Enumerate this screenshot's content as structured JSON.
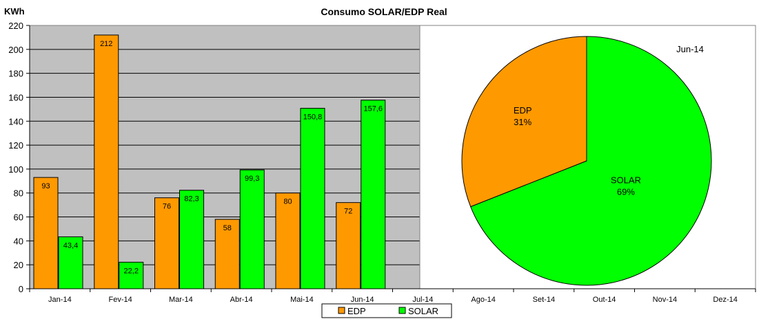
{
  "chart_data": {
    "type": "bar",
    "title": "Consumo SOLAR/EDP Real",
    "ylabel": "KWh",
    "ylim": [
      0,
      220
    ],
    "yticks": [
      0,
      20,
      40,
      60,
      80,
      100,
      120,
      140,
      160,
      180,
      200,
      220
    ],
    "categories": [
      "Jan-14",
      "Fev-14",
      "Mar-14",
      "Abr-14",
      "Mai-14",
      "Jun-14",
      "Jul-14",
      "Ago-14",
      "Set-14",
      "Out-14",
      "Nov-14",
      "Dez-14"
    ],
    "series": [
      {
        "name": "EDP",
        "color": "#ff9900",
        "values": [
          93,
          212,
          76,
          58,
          80,
          72,
          null,
          null,
          null,
          null,
          null,
          null
        ],
        "labels": [
          "93",
          "212",
          "76",
          "58",
          "80",
          "72",
          "",
          "",
          "",
          "",
          "",
          ""
        ]
      },
      {
        "name": "SOLAR",
        "color": "#00ff00",
        "values": [
          43.4,
          22.2,
          82.3,
          99.3,
          150.8,
          157.6,
          null,
          null,
          null,
          null,
          null,
          null
        ],
        "labels": [
          "43,4",
          "22,2",
          "82,3",
          "99,3",
          "150,8",
          "157,6",
          "",
          "",
          "",
          "",
          "",
          ""
        ]
      }
    ],
    "plot_background": "#c0c0c0",
    "grid": true,
    "legend": {
      "position": "bottom",
      "items": [
        "EDP",
        "SOLAR"
      ]
    },
    "inset_pie": {
      "type": "pie",
      "title": "Jun-14",
      "slices": [
        {
          "name": "EDP",
          "percent": 31,
          "pct_label": "31%",
          "color": "#ff9900"
        },
        {
          "name": "SOLAR",
          "percent": 69,
          "pct_label": "69%",
          "color": "#00ff00"
        }
      ]
    }
  }
}
